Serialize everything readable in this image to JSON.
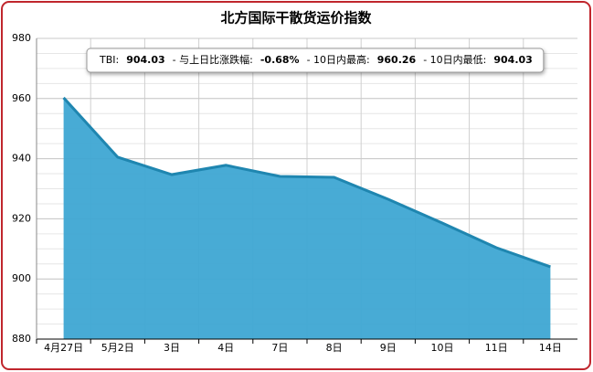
{
  "chart_data": {
    "type": "area",
    "title": "北方国际干散货运价指数",
    "categories": [
      "4月27日",
      "5月2日",
      "3日",
      "4日",
      "7日",
      "8日",
      "9日",
      "10日",
      "11日",
      "14日"
    ],
    "values": [
      960.26,
      940.5,
      934.7,
      937.8,
      934.1,
      933.8,
      926.5,
      918.6,
      910.4,
      904.03
    ],
    "color": "#3ea6d3",
    "line_color": "#1f86b0",
    "ylim": [
      880,
      980
    ],
    "yticks": [
      880,
      900,
      920,
      940,
      960,
      980
    ],
    "grid": true,
    "annotation": [
      {
        "label": "TBI:",
        "value": "904.03"
      },
      {
        "label": "- 与上日比涨跌幅:",
        "value": "-0.68%"
      },
      {
        "label": "- 10日内最高:",
        "value": "960.26"
      },
      {
        "label": "- 10日内最低:",
        "value": "904.03"
      }
    ]
  }
}
